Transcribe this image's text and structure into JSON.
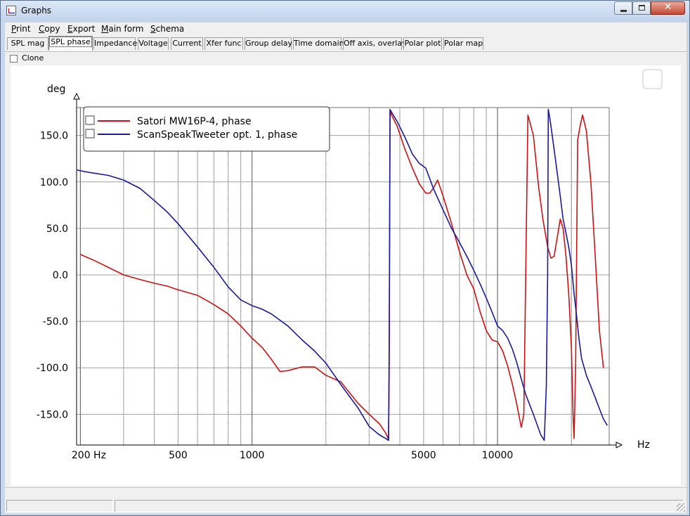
{
  "window": {
    "title": "Graphs",
    "close_glyph": "✕"
  },
  "menu": [
    {
      "label": "Print",
      "accel": "P",
      "rest": "rint"
    },
    {
      "label": "Copy",
      "accel": "C",
      "rest": "opy"
    },
    {
      "label": "Export",
      "accel": "E",
      "rest": "xport"
    },
    {
      "label": "Main form",
      "accel": "M",
      "rest": "ain form"
    },
    {
      "label": "Schema",
      "accel": "S",
      "rest": "chema"
    }
  ],
  "tabs": [
    {
      "label": "SPL mag"
    },
    {
      "label": "SPL phase",
      "active": true
    },
    {
      "label": "Impedance"
    },
    {
      "label": "Voltage"
    },
    {
      "label": "Current"
    },
    {
      "label": "Xfer func"
    },
    {
      "label": "Group delay"
    },
    {
      "label": "Time domain"
    },
    {
      "label": "Off axis, overlay"
    },
    {
      "label": "Polar plot"
    },
    {
      "label": "Polar map"
    }
  ],
  "clone": {
    "label": "Clone",
    "checked": false
  },
  "icons": {
    "app": "graph-app-icon",
    "minimize": "minimize-icon",
    "maximize": "maximize-icon",
    "close": "close-icon",
    "grip": "resize-grip-icon"
  },
  "chart_data": {
    "type": "line",
    "ylabel": "deg",
    "xlabel": "Hz",
    "xscale": "log",
    "xlim": [
      193,
      28500
    ],
    "ylim": [
      -183,
      180
    ],
    "x_ticks": [
      {
        "value": 200,
        "label": "200 Hz"
      },
      {
        "value": 500,
        "label": "500"
      },
      {
        "value": 1000,
        "label": "1000"
      },
      {
        "value": 5000,
        "label": "5000"
      },
      {
        "value": 10000,
        "label": "10000"
      }
    ],
    "y_ticks": [
      {
        "value": 150,
        "label": "150.0"
      },
      {
        "value": 100,
        "label": "100.0"
      },
      {
        "value": 50,
        "label": "50.0"
      },
      {
        "value": 0,
        "label": "0.0"
      },
      {
        "value": -50,
        "label": "-50.0"
      },
      {
        "value": -100,
        "label": "-100.0"
      },
      {
        "value": -150,
        "label": "-150.0"
      }
    ],
    "grid": true,
    "legend_position": "top-left",
    "series": [
      {
        "name": "Satori MW16P-4, phase",
        "color": "#cc1111",
        "x": [
          200,
          230,
          260,
          300,
          350,
          400,
          450,
          500,
          600,
          700,
          800,
          900,
          1000,
          1100,
          1200,
          1300,
          1400,
          1600,
          1800,
          2000,
          2300,
          2700,
          3000,
          3300,
          3500,
          3600,
          3620,
          3650,
          3700,
          3900,
          4200,
          4500,
          4800,
          5100,
          5300,
          5500,
          5700,
          6000,
          6500,
          7000,
          7500,
          8000,
          8500,
          9000,
          9500,
          10000,
          10500,
          11000,
          11500,
          12000,
          12300,
          12500,
          12800,
          13300,
          14000,
          14700,
          15300,
          16000,
          16500,
          17000,
          17500,
          18000,
          18500,
          19000,
          19500,
          20000,
          20300,
          20500,
          20800,
          21200,
          21700,
          22200,
          23000,
          24000,
          25000,
          26000,
          27000
        ],
        "y": [
          22,
          15,
          8,
          0,
          -5,
          -9,
          -12,
          -16,
          -22,
          -32,
          -42,
          -55,
          -68,
          -78,
          -91,
          -104,
          -103,
          -99,
          -99,
          -108,
          -115,
          -138,
          -150,
          -160,
          -170,
          -177,
          -100,
          177,
          172,
          160,
          135,
          115,
          98,
          88,
          88,
          94,
          102,
          85,
          55,
          25,
          0,
          -15,
          -40,
          -60,
          -70,
          -72,
          -82,
          -98,
          -118,
          -140,
          -155,
          -164,
          -150,
          172,
          150,
          95,
          60,
          30,
          18,
          20,
          40,
          60,
          50,
          20,
          -20,
          -80,
          -150,
          -176,
          -100,
          145,
          160,
          172,
          155,
          100,
          20,
          -60,
          -100
        ]
      },
      {
        "name": "ScanSpeakTweeter opt. 1, phase",
        "color": "#1a1a9a",
        "x": [
          193,
          200,
          220,
          260,
          300,
          350,
          400,
          450,
          500,
          600,
          700,
          800,
          900,
          1000,
          1100,
          1200,
          1400,
          1600,
          1800,
          2000,
          2300,
          2700,
          3000,
          3300,
          3500,
          3600,
          3620,
          3650,
          3700,
          3900,
          4200,
          4500,
          4800,
          5100,
          5500,
          6000,
          6500,
          7000,
          7500,
          8000,
          8500,
          9000,
          9500,
          10000,
          10500,
          11000,
          11500,
          12000,
          12500,
          13000,
          14000,
          15000,
          15500,
          15800,
          16000,
          16100,
          16300,
          16500,
          17000,
          17500,
          18000,
          18500,
          19000,
          19500,
          20000,
          20500,
          21000,
          21500,
          22000,
          23000,
          24000,
          25000,
          26000,
          27000,
          28000
        ],
        "y": [
          113,
          112,
          110,
          107,
          102,
          93,
          80,
          68,
          55,
          30,
          8,
          -13,
          -27,
          -33,
          -37,
          -42,
          -55,
          -70,
          -82,
          -95,
          -118,
          -143,
          -163,
          -172,
          -176,
          -178,
          -75,
          178,
          175,
          165,
          148,
          130,
          120,
          115,
          92,
          70,
          50,
          35,
          20,
          5,
          -10,
          -25,
          -40,
          -55,
          -60,
          -68,
          -80,
          -95,
          -112,
          -128,
          -150,
          -172,
          -178,
          -120,
          0,
          178,
          170,
          160,
          135,
          110,
          85,
          60,
          45,
          30,
          10,
          -20,
          -45,
          -70,
          -90,
          -108,
          -120,
          -132,
          -144,
          -155,
          -162
        ]
      }
    ]
  }
}
